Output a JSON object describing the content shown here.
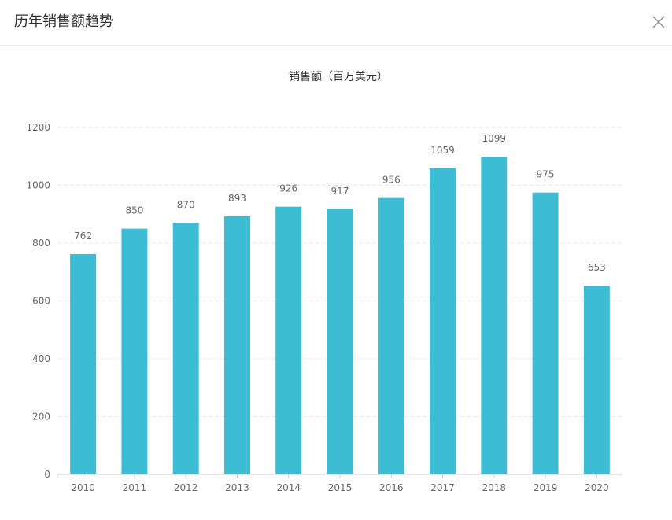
{
  "dialog": {
    "title": "历年销售额趋势",
    "close_icon": "close-icon"
  },
  "colors": {
    "bar": "#3dbdd3",
    "axis": "#999999",
    "grid": "#e6e6e6",
    "label": "#666666",
    "title": "#333333"
  },
  "chart_data": {
    "type": "bar",
    "title": "销售额（百万美元）",
    "xlabel": "",
    "ylabel": "",
    "categories": [
      "2010",
      "2011",
      "2012",
      "2013",
      "2014",
      "2015",
      "2016",
      "2017",
      "2018",
      "2019",
      "2020"
    ],
    "values": [
      762,
      850,
      870,
      893,
      926,
      917,
      956,
      1059,
      1099,
      975,
      653
    ],
    "ylim": [
      0,
      1200
    ],
    "yticks": [
      0,
      200,
      400,
      600,
      800,
      1000,
      1200
    ],
    "grid": true,
    "data_labels": true
  }
}
